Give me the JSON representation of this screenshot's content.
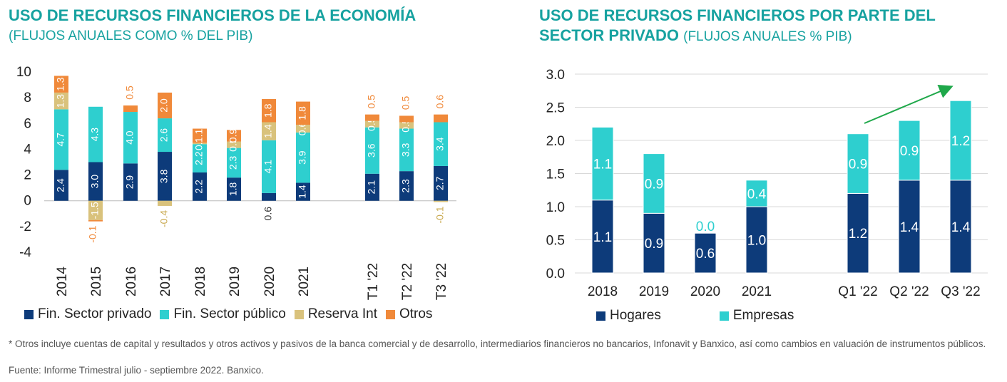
{
  "left": {
    "title": "USO DE RECURSOS FINANCIEROS DE LA ECONOMÍA",
    "subtitle": "(FLUJOS ANUALES COMO % DEL PIB)"
  },
  "right": {
    "title": "USO DE RECURSOS FINANCIEROS POR PARTE DEL SECTOR PRIVADO",
    "subtitle": "(FLUJOS ANUALES % PIB)"
  },
  "footnote": "* Otros incluye cuentas de capital y resultados y otros activos y pasivos de la banca comercial y de desarrollo, intermediarios financieros no bancarios, Infonavit y Banxico, así como cambios en valuación de instrumentos públicos.",
  "source": "Fuente: Informe Trimestral julio - septiembre 2022. Banxico.",
  "colors": {
    "privado": "#0d3b7a",
    "publico": "#2ecfcf",
    "reserva": "#d9c27c",
    "otros": "#f0893a",
    "arrow": "#1fa84a"
  },
  "chart_data": [
    {
      "type": "bar",
      "stacked": true,
      "title": "USO DE RECURSOS FINANCIEROS DE LA ECONOMÍA",
      "subtitle": "(FLUJOS ANUALES COMO % DEL PIB)",
      "categories": [
        "2014",
        "2015",
        "2016",
        "2017",
        "2018",
        "2019",
        "2020",
        "2021",
        "",
        "T1 '22",
        "T2 '22",
        "T3 '22"
      ],
      "ylim": [
        -4,
        10
      ],
      "yticks": [
        "-4",
        "-2",
        "0",
        "2",
        "4",
        "6",
        "8",
        "10"
      ],
      "series": [
        {
          "name": "Fin. Sector privado",
          "key": "privado",
          "values": [
            2.4,
            3.0,
            2.9,
            3.8,
            2.2,
            1.8,
            0.6,
            1.4,
            null,
            2.1,
            2.3,
            2.7
          ],
          "labels": [
            "2.4",
            "3.0",
            "2.9",
            "3.8",
            "2.2",
            "1.8",
            "0.6",
            "1.4",
            "",
            "2.1",
            "2.3",
            "2.7"
          ]
        },
        {
          "name": "Fin. Sector público",
          "key": "publico",
          "values": [
            4.7,
            4.3,
            4.0,
            2.6,
            2.2,
            2.3,
            4.1,
            3.9,
            null,
            3.6,
            3.3,
            3.4
          ],
          "labels": [
            "4.7",
            "4.3",
            "4.0",
            "2.6",
            "2.2",
            "2.3",
            "4.1",
            "3.9",
            "",
            "3.6",
            "3.3",
            "3.4"
          ]
        },
        {
          "name": "Reserva Int",
          "key": "reserva",
          "values": [
            1.3,
            -1.5,
            0.0,
            -0.4,
            0.1,
            0.5,
            1.4,
            0.6,
            null,
            0.5,
            0.5,
            -0.1
          ],
          "labels": [
            "1.3",
            "-1.5",
            "",
            "-0.4",
            "0.1",
            "0.5",
            "1.4",
            "0.6",
            "",
            "0.5",
            "0.5",
            "-0.1"
          ]
        },
        {
          "name": "Otros",
          "key": "otros",
          "values": [
            1.3,
            -0.1,
            0.5,
            2.0,
            1.1,
            0.9,
            1.8,
            1.8,
            null,
            0.5,
            0.5,
            0.6
          ],
          "labels": [
            "1.3",
            "-0.1",
            "0.5",
            "2.0",
            "1.1",
            "0.9",
            "1.8",
            "1.8",
            "",
            "0.5",
            "0.5",
            "0.6"
          ]
        }
      ]
    },
    {
      "type": "bar",
      "stacked": true,
      "title": "USO DE RECURSOS FINANCIEROS POR PARTE DEL SECTOR PRIVADO",
      "subtitle": "(FLUJOS ANUALES % PIB)",
      "categories": [
        "2018",
        "2019",
        "2020",
        "2021",
        "",
        "Q1 '22",
        "Q2 '22",
        "Q3 '22"
      ],
      "ylim": [
        0,
        3.0
      ],
      "yticks": [
        "0.0",
        "0.5",
        "1.0",
        "1.5",
        "2.0",
        "2.5",
        "3.0"
      ],
      "annotation": "green upward arrow from Q1 '22 to Q3 '22",
      "series": [
        {
          "name": "Hogares",
          "key": "privado",
          "values": [
            1.1,
            0.9,
            0.6,
            1.0,
            null,
            1.2,
            1.4,
            1.4
          ],
          "labels": [
            "1.1",
            "0.9",
            "0.6",
            "1.0",
            "",
            "1.2",
            "1.4",
            "1.4"
          ]
        },
        {
          "name": "Empresas",
          "key": "publico",
          "values": [
            1.1,
            0.9,
            0.0,
            0.4,
            null,
            0.9,
            0.9,
            1.2
          ],
          "labels": [
            "1.1",
            "0.9",
            "0.0",
            "0.4",
            "",
            "0.9",
            "0.9",
            "1.2"
          ]
        }
      ]
    }
  ]
}
